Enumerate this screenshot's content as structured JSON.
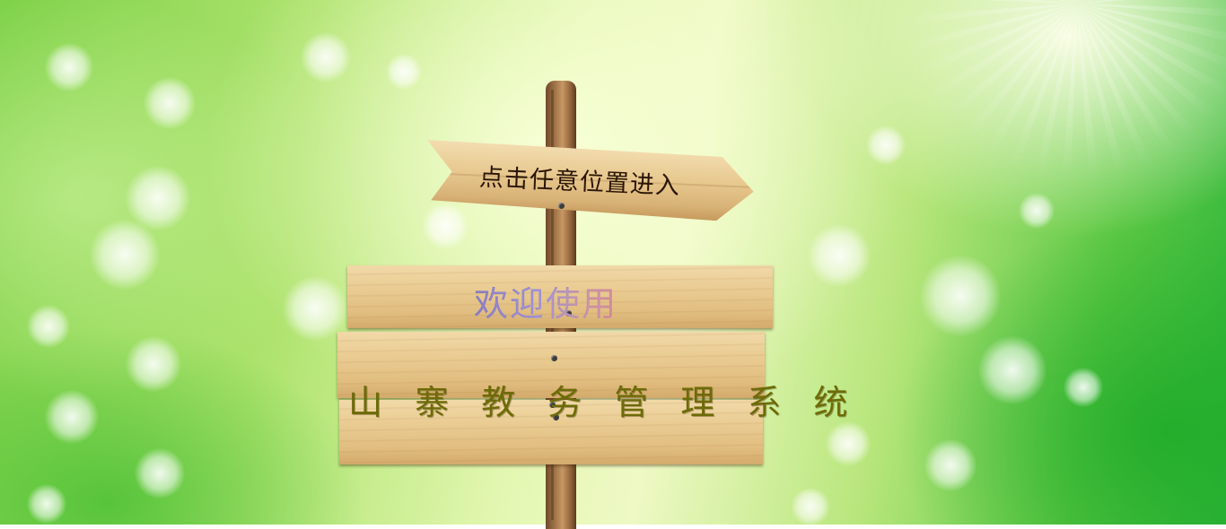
{
  "sign": {
    "enter_prompt": "点击任意位置进入",
    "welcome": "欢迎使用",
    "system_name": "山 寨 教 务 管 理 系 统"
  },
  "colors": {
    "welcome_gradient_start": "#5b4aa8",
    "welcome_gradient_end": "#c45a6a",
    "system_name": "#6d6b08",
    "wood": "#e9cb91",
    "background_green": "#5cc844"
  }
}
